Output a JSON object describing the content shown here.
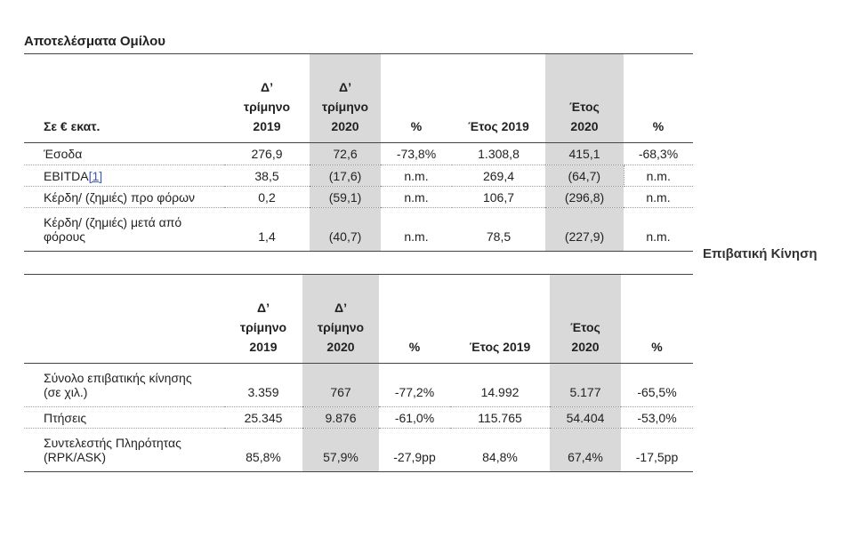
{
  "group_results": {
    "title": "Αποτελέσματα Ομίλου",
    "header": {
      "label": "Σε € εκατ.",
      "q4_2019": "Δ’ τρίμηνο 2019",
      "q4_2020": "Δ’ τρίμηνο 2020",
      "pct_q": "%",
      "year_2019": "Έτος 2019",
      "year_2020": "Έτος 2020",
      "pct_y": "%"
    },
    "rows": [
      {
        "label": "Έσοδα",
        "q19": "276,9",
        "q20": "72,6",
        "pq": "-73,8%",
        "y19": "1.308,8",
        "y20": "415,1",
        "py": "-68,3%"
      },
      {
        "label": "EBITDA",
        "footnote": "[1]",
        "q19": "38,5",
        "q20": "(17,6)",
        "pq": "n.m.",
        "y19": "269,4",
        "y20": "(64,7)",
        "py": "n.m."
      },
      {
        "label": "Κέρδη/ (ζημιές) προ φόρων",
        "q19": "0,2",
        "q20": "(59,1)",
        "pq": "n.m.",
        "y19": "106,7",
        "y20": "(296,8)",
        "py": "n.m."
      },
      {
        "label_line1": "Κέρδη/ (ζημιές) μετά από",
        "label_line2": "φόρους",
        "q19": "1,4",
        "q20": "(40,7)",
        "pq": "n.m.",
        "y19": "78,5",
        "y20": "(227,9)",
        "py": "n.m."
      }
    ]
  },
  "passenger_traffic": {
    "title": "Επιβατική Κίνηση",
    "header": {
      "q4_2019": "Δ’ τρίμηνο 2019",
      "q4_2020": "Δ’ τρίμηνο 2020",
      "pct_q": "%",
      "year_2019": "Έτος 2019",
      "year_2020": "Έτος 2020",
      "pct_y": "%"
    },
    "rows": [
      {
        "label_line1": "Σύνολο επιβατικής κίνησης",
        "label_line2": "(σε χιλ.)",
        "q19": "3.359",
        "q20": "767",
        "pq": "-77,2%",
        "y19": "14.992",
        "y20": "5.177",
        "py": "-65,5%"
      },
      {
        "label": "Πτήσεις",
        "q19": "25.345",
        "q20": "9.876",
        "pq": "-61,0%",
        "y19": "115.765",
        "y20": "54.404",
        "py": "-53,0%"
      },
      {
        "label_line1": "Συντελεστής Πληρότητας",
        "label_line2": "(RPK/ASK)",
        "q19": "85,8%",
        "q20": "57,9%",
        "pq": "-27,9pp",
        "y19": "84,8%",
        "y20": "67,4%",
        "py": "-17,5pp"
      }
    ]
  }
}
